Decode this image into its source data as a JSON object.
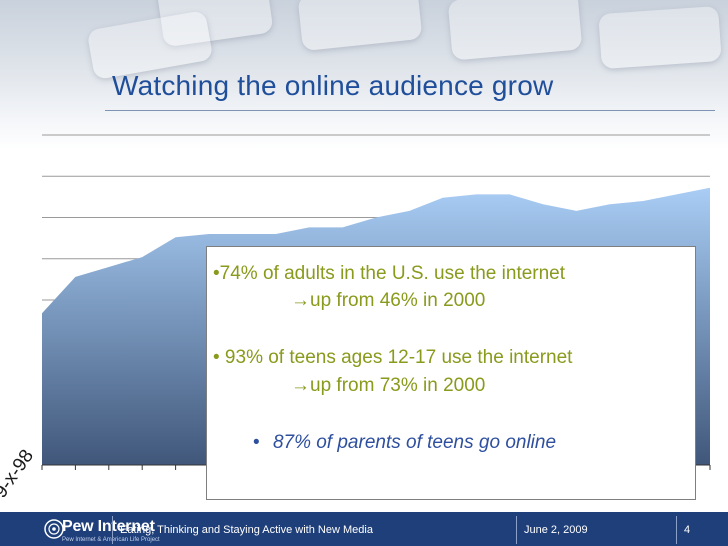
{
  "slide": {
    "title": "Watching the online audience grow",
    "corner_label": "9-x-98"
  },
  "callout": {
    "bullet1": "•74% of adults in the U.S. use the internet",
    "bullet1_sub": "up from 46% in 2000",
    "bullet2": "• 93% of teens ages 12-17 use the internet",
    "bullet2_sub": "up from 73% in 2000",
    "bullet3_marker": "•",
    "bullet3": "87% of parents of teens go online",
    "arrow": "→"
  },
  "footer": {
    "logo": "Pew Internet",
    "logo_subtitle": "Pew Internet & American Life Project",
    "presentation_title": "Eating, Thinking and Staying Active with New Media",
    "date": "June 2, 2009",
    "page_number": "4"
  },
  "chart_data": {
    "type": "area",
    "values": [
      0.46,
      0.57,
      0.6,
      0.63,
      0.69,
      0.7,
      0.7,
      0.7,
      0.72,
      0.72,
      0.75,
      0.77,
      0.81,
      0.82,
      0.82,
      0.79,
      0.77,
      0.79,
      0.8,
      0.82,
      0.84
    ],
    "ylim": [
      0,
      1
    ],
    "grid": true,
    "colors": {
      "top": "#a9cdf5",
      "bottom": "#40577a",
      "grid": "#9a9a9a",
      "accent": "#1f4e9a"
    }
  }
}
